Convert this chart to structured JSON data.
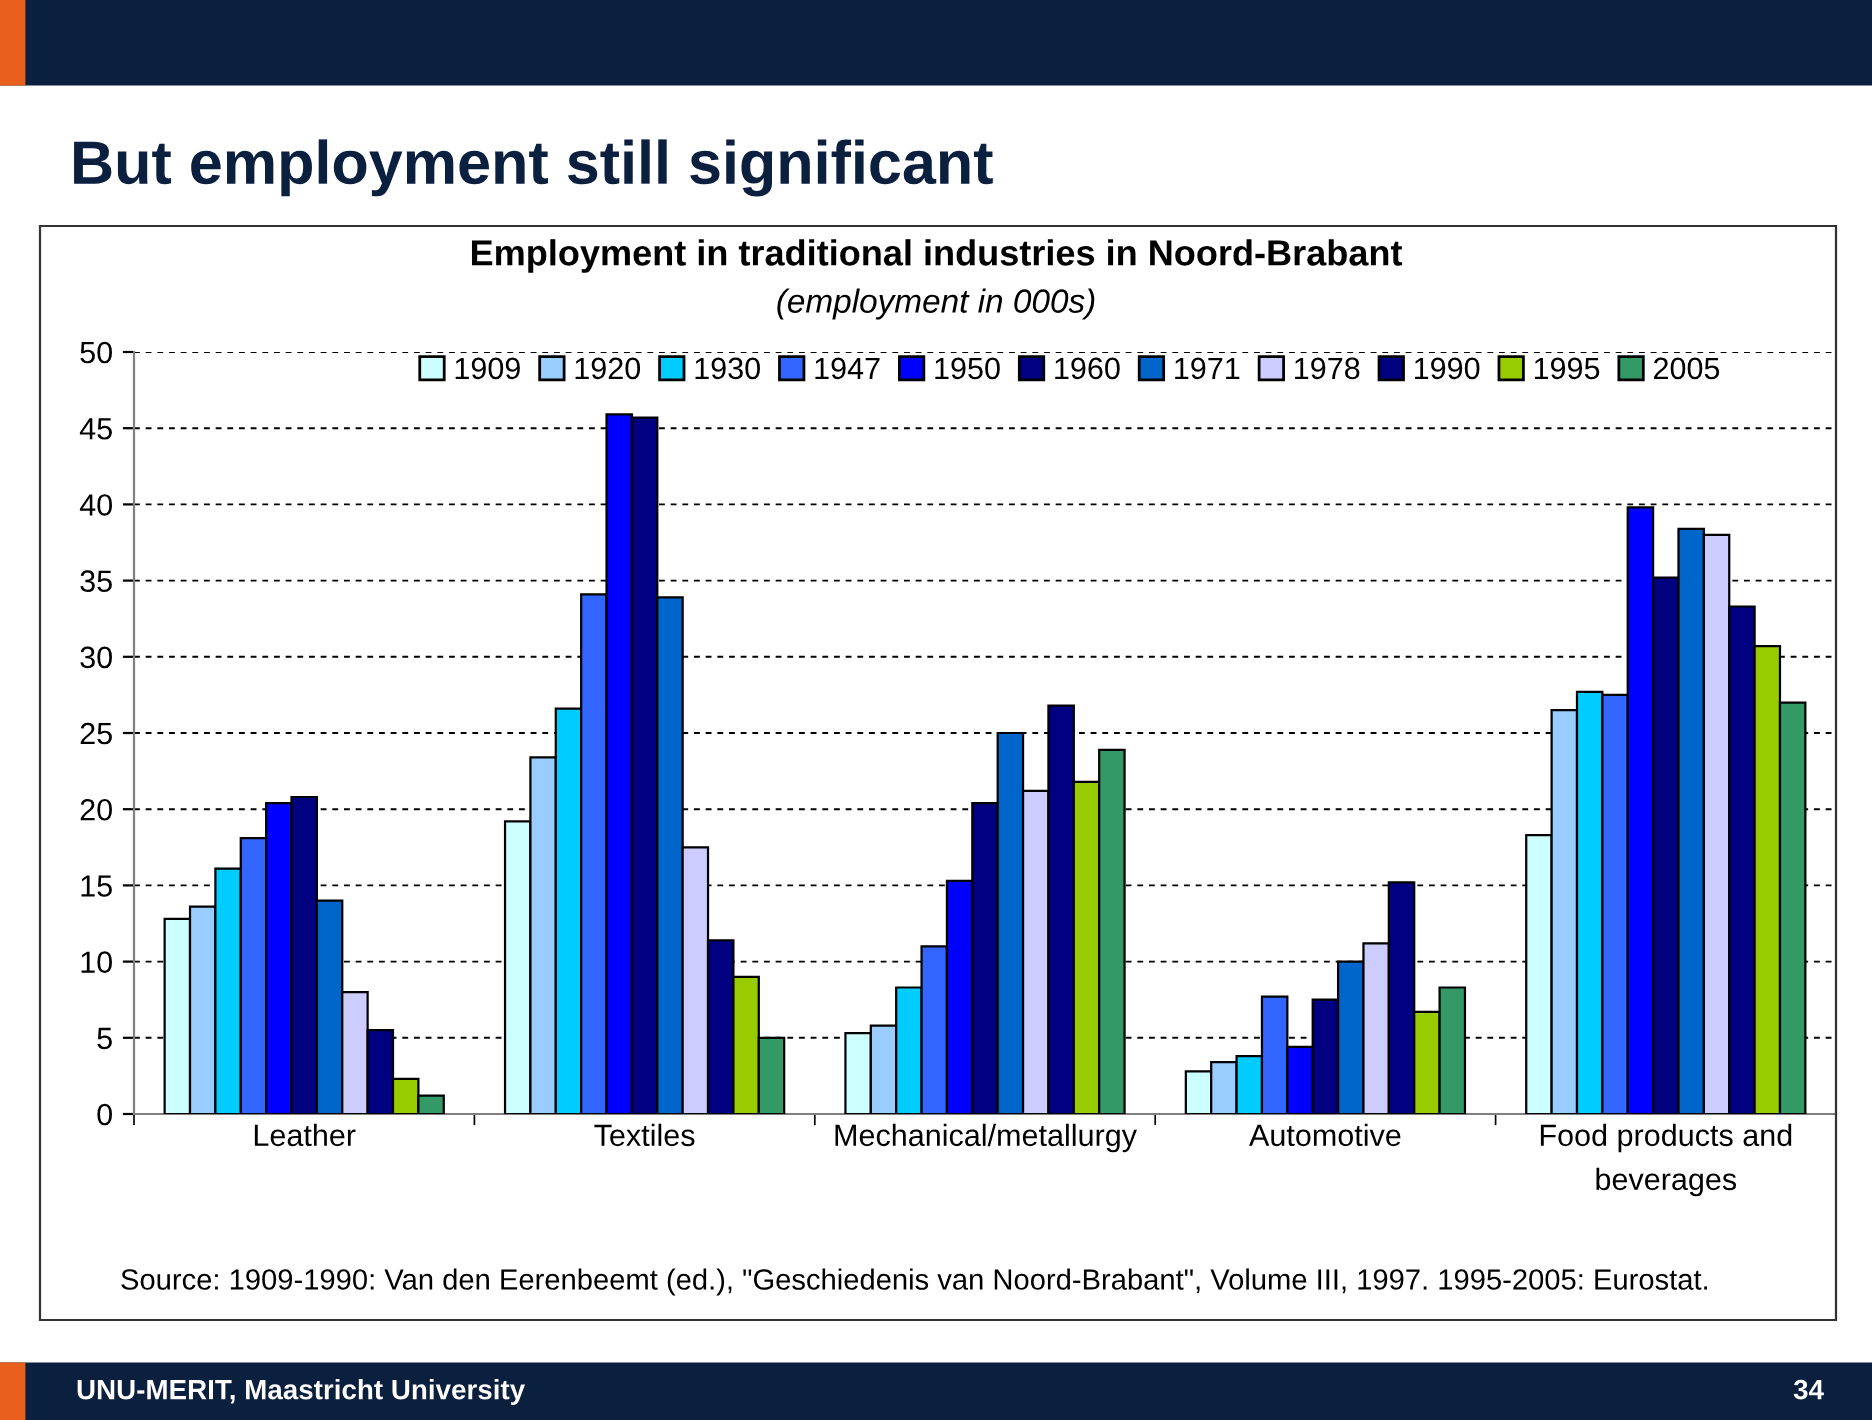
{
  "chart_data": {
    "type": "bar",
    "title": "Employment in traditional industries in Noord-Brabant",
    "subtitle": "(employment in 000s)",
    "categories": [
      "Leather",
      "Textiles",
      "Mechanical/metallurgy",
      "Automotive",
      "Food products and\nbeverages"
    ],
    "series": [
      {
        "name": "1909",
        "color": "#ccffff",
        "values": [
          12.8,
          19.2,
          5.3,
          2.8,
          18.3
        ]
      },
      {
        "name": "1920",
        "color": "#99ccff",
        "values": [
          13.6,
          23.4,
          5.8,
          3.4,
          26.5
        ]
      },
      {
        "name": "1930",
        "color": "#00ccff",
        "values": [
          16.1,
          26.6,
          8.3,
          3.8,
          27.7
        ]
      },
      {
        "name": "1947",
        "color": "#3366ff",
        "values": [
          18.1,
          34.1,
          11.0,
          7.7,
          27.5
        ]
      },
      {
        "name": "1950",
        "color": "#0000ff",
        "values": [
          20.4,
          45.9,
          15.3,
          4.4,
          39.8
        ]
      },
      {
        "name": "1960",
        "color": "#000080",
        "values": [
          20.8,
          45.7,
          20.4,
          7.5,
          35.2
        ]
      },
      {
        "name": "1971",
        "color": "#0066cc",
        "values": [
          14.0,
          33.9,
          25.0,
          10.0,
          38.4
        ]
      },
      {
        "name": "1978",
        "color": "#ccccff",
        "values": [
          8.0,
          17.5,
          21.2,
          11.2,
          38.0
        ]
      },
      {
        "name": "1990",
        "color": "#000080",
        "values": [
          5.5,
          11.4,
          26.8,
          15.2,
          33.3
        ]
      },
      {
        "name": "1995",
        "color": "#99cc00",
        "values": [
          2.3,
          9.0,
          21.8,
          6.7,
          30.7
        ]
      },
      {
        "name": "2005",
        "color": "#339966",
        "values": [
          1.2,
          5.0,
          23.9,
          8.3,
          27.0
        ]
      }
    ],
    "ylim": [
      0,
      50
    ],
    "yticks": [
      0,
      5,
      10,
      15,
      20,
      25,
      30,
      35,
      40,
      45,
      50
    ],
    "grid": "y",
    "legend": "top",
    "annotations": [
      "But employment still significant",
      "Source: 1909-1990: Van den Eerenbeemt (ed.), \"Geschiedenis van Noord-Brabant\", Volume III, 1997. 1995-2005: Eurostat.",
      "UNU-MERIT, Maastricht University",
      "34"
    ]
  }
}
